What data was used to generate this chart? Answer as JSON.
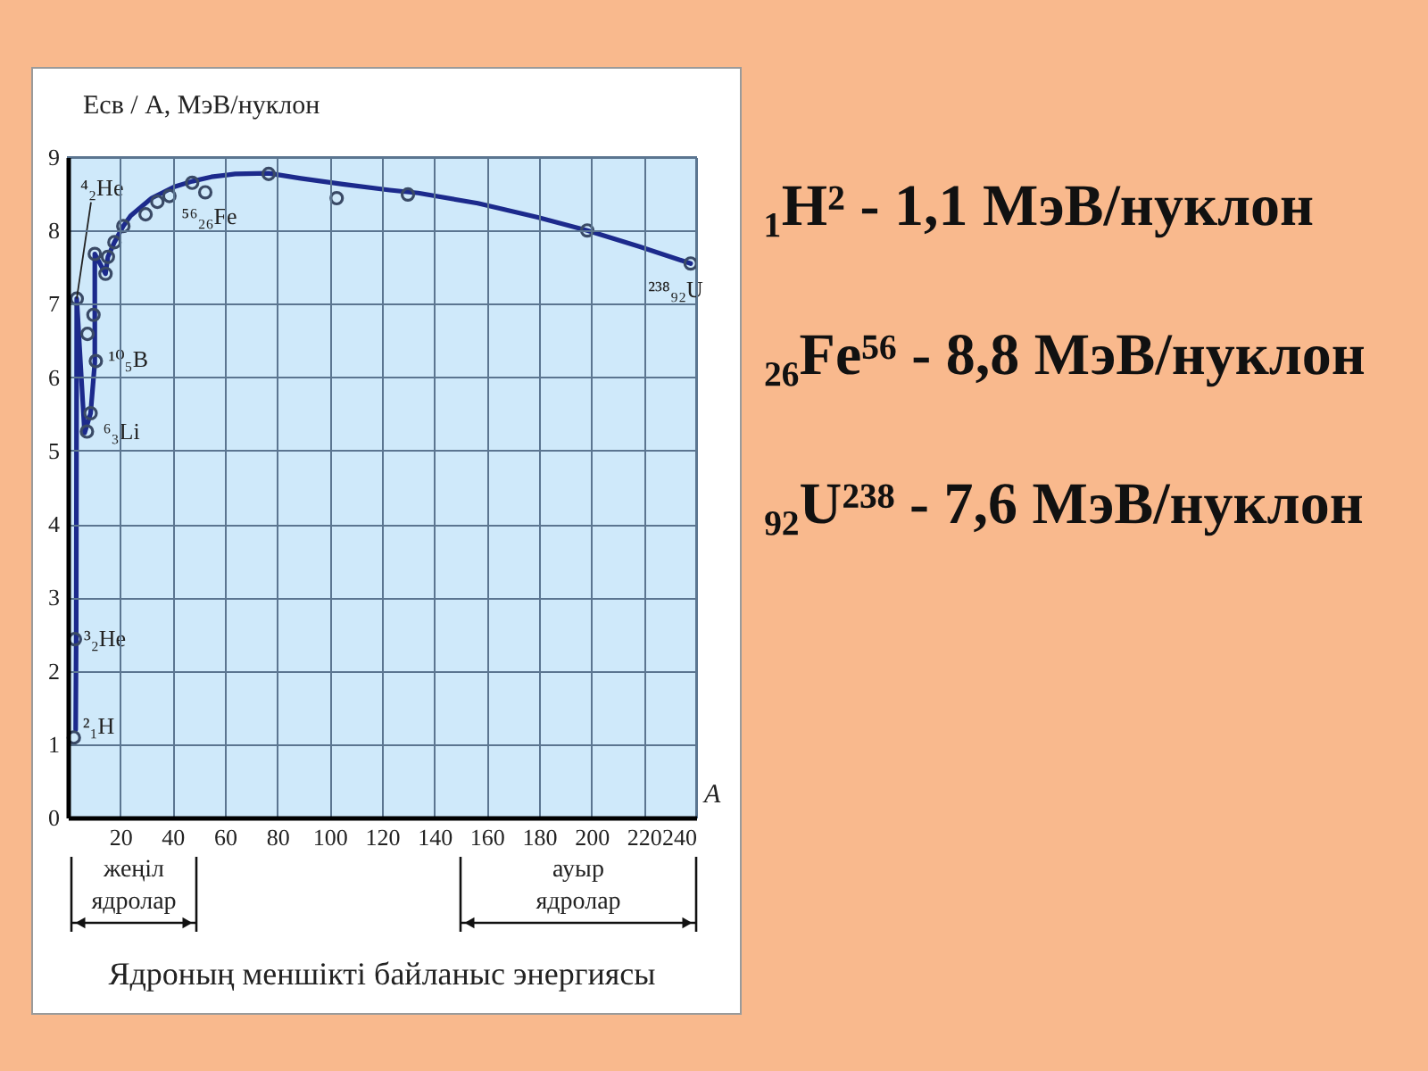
{
  "chart_data": {
    "type": "line",
    "title": "Ядроның меншікті байланыс энергиясы",
    "xlabel": "A",
    "ylabel": "Eсв / A, МэВ/нуклон",
    "xlim": [
      0,
      240
    ],
    "ylim": [
      0,
      9
    ],
    "xticks": [
      20,
      40,
      60,
      80,
      100,
      120,
      140,
      160,
      180,
      200,
      220,
      240
    ],
    "yticks": [
      0,
      1,
      2,
      3,
      4,
      5,
      6,
      7,
      8,
      9
    ],
    "grid": true,
    "series": [
      {
        "color": "#1c2a8c",
        "x": [
          3.0,
          3.2,
          3.4,
          6.4,
          8.7,
          10.3,
          10.3,
          14.4,
          15.3,
          17.8,
          21.2,
          24,
          32,
          41,
          47.5,
          54.8,
          63.9,
          76.7,
          89,
          105,
          123,
          133.8,
          156.6,
          179.5,
          198.4,
          218.3,
          237.9
        ],
        "values": [
          1.2,
          2.5,
          7.07,
          5.24,
          5.51,
          6.2,
          7.68,
          7.41,
          7.64,
          7.84,
          8.06,
          8.2,
          8.44,
          8.6,
          8.67,
          8.73,
          8.77,
          8.78,
          8.71,
          8.63,
          8.55,
          8.51,
          8.37,
          8.18,
          8.0,
          7.78,
          7.55
        ]
      },
      {
        "type": "scatter",
        "color": "#3a4a66",
        "marker": "circle",
        "x": [
          2.3,
          2.7,
          3.4,
          7.3,
          8.7,
          7.5,
          9.8,
          10.7,
          10.3,
          14.4,
          15.3,
          17.8,
          21.2,
          29.7,
          34.2,
          38.8,
          47.5,
          52.5,
          76.7,
          102.7,
          129.9,
          198.4,
          237.9
        ],
        "values": [
          1.09,
          2.43,
          7.07,
          5.26,
          5.51,
          6.59,
          6.85,
          6.22,
          7.68,
          7.41,
          7.64,
          7.84,
          8.06,
          8.22,
          8.39,
          8.47,
          8.65,
          8.52,
          8.77,
          8.44,
          8.49,
          8.0,
          7.55
        ]
      }
    ],
    "annotations": [
      {
        "text": "⁴₂He",
        "x": 3.4,
        "y": 7.07
      },
      {
        "text": "⁵⁶₂₆Fe",
        "x": 47.5,
        "y": 8.65
      },
      {
        "text": "¹⁰₅B",
        "x": 10.7,
        "y": 6.22
      },
      {
        "text": "⁶₃Li",
        "x": 7.3,
        "y": 5.26
      },
      {
        "text": "³₂He",
        "x": 2.7,
        "y": 2.43
      },
      {
        "text": "²₁H",
        "x": 2.3,
        "y": 1.09
      },
      {
        "text": "²³⁸₉₂U",
        "x": 237.9,
        "y": 7.55
      },
      "жеңіл ядролар",
      "ауыр ядролар",
      "₁H² - 1,1 МэВ/нуклон",
      "₂₆Fe⁵⁶ - 8,8 МэВ/нуклон",
      "₉₂U²³⁸ - 7,6 МэВ/нуклон"
    ]
  }
}
